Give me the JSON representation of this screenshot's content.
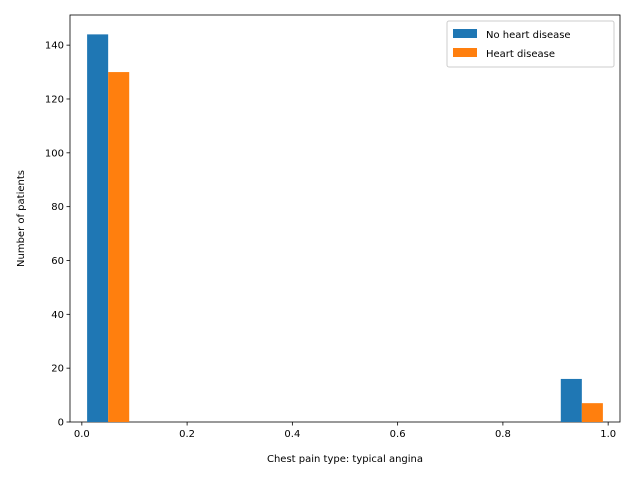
{
  "chart_data": {
    "type": "bar",
    "title": "",
    "xlabel": "Chest pain type: typical angina",
    "ylabel": "Number of patients",
    "xlim": [
      -0.0225,
      1.0225
    ],
    "ylim": [
      0,
      151.2
    ],
    "xticks": [
      0.0,
      0.2,
      0.4,
      0.6,
      0.8,
      1.0
    ],
    "xtick_labels": [
      "0.0",
      "0.2",
      "0.4",
      "0.6",
      "0.8",
      "1.0"
    ],
    "yticks": [
      0,
      20,
      40,
      60,
      80,
      100,
      120,
      140
    ],
    "ytick_labels": [
      "0",
      "20",
      "40",
      "60",
      "80",
      "100",
      "120",
      "140"
    ],
    "grid": false,
    "legend_position": "top-right",
    "series": [
      {
        "name": "No heart disease",
        "color": "#1f77b4",
        "bars": [
          {
            "x_start": 0.01,
            "x_end": 0.05,
            "value": 144
          },
          {
            "x_start": 0.91,
            "x_end": 0.95,
            "value": 16
          }
        ]
      },
      {
        "name": "Heart disease",
        "color": "#ff7f0e",
        "bars": [
          {
            "x_start": 0.05,
            "x_end": 0.09,
            "value": 130
          },
          {
            "x_start": 0.95,
            "x_end": 0.99,
            "value": 7
          }
        ]
      }
    ]
  }
}
